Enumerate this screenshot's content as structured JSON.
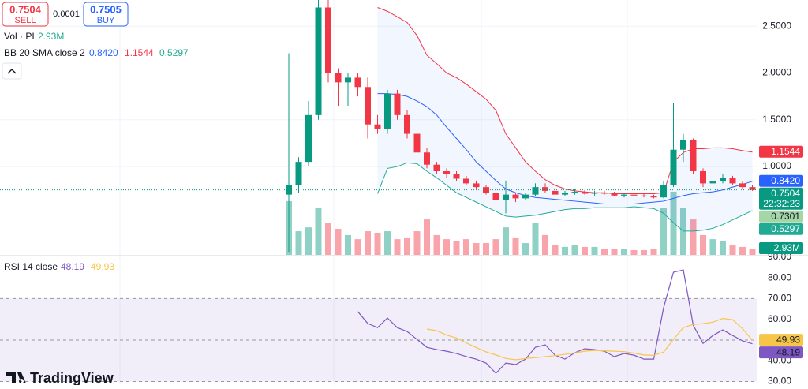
{
  "trade": {
    "sell_price": "0.7504",
    "sell": "SELL",
    "spread": "0.0001",
    "buy_price": "0.7505",
    "buy": "BUY"
  },
  "brand": "TradingView",
  "chart_data": [
    {
      "type": "candlestick",
      "open": [
        0.7,
        0.8,
        1.05,
        1.55,
        2.7,
        2.0,
        1.9,
        1.95,
        1.85,
        1.45,
        1.4,
        1.78,
        1.55,
        1.35,
        1.15,
        1.02,
        0.95,
        0.92,
        0.87,
        0.82,
        0.78,
        0.72,
        0.64,
        0.7,
        0.66,
        0.7,
        0.78,
        0.74,
        0.7,
        0.72,
        0.73,
        0.71,
        0.72,
        0.71,
        0.69,
        0.7,
        0.69,
        0.68,
        0.67,
        0.8,
        1.18,
        1.28,
        0.95,
        0.82,
        0.84,
        0.88,
        0.82,
        0.78
      ],
      "high": [
        2.21,
        1.1,
        1.7,
        2.78,
        2.78,
        2.05,
        2.0,
        2.0,
        1.95,
        1.55,
        1.82,
        1.82,
        1.6,
        1.4,
        1.2,
        1.05,
        0.98,
        0.95,
        0.9,
        0.85,
        0.8,
        0.75,
        0.85,
        0.72,
        0.72,
        0.82,
        0.82,
        0.76,
        0.74,
        0.76,
        0.75,
        0.74,
        0.74,
        0.73,
        0.72,
        0.72,
        0.71,
        0.7,
        0.84,
        1.68,
        1.35,
        1.3,
        0.98,
        0.88,
        0.92,
        0.9,
        0.84,
        0.8
      ],
      "low": [
        0.08,
        0.72,
        1.0,
        1.5,
        1.9,
        1.65,
        1.65,
        1.75,
        1.3,
        1.35,
        1.35,
        1.5,
        1.3,
        1.12,
        0.98,
        0.92,
        0.88,
        0.84,
        0.8,
        0.76,
        0.7,
        0.6,
        0.5,
        0.62,
        0.64,
        0.68,
        0.72,
        0.68,
        0.68,
        0.7,
        0.7,
        0.69,
        0.7,
        0.68,
        0.67,
        0.68,
        0.67,
        0.66,
        0.66,
        0.78,
        1.05,
        0.92,
        0.78,
        0.78,
        0.82,
        0.8,
        0.76,
        0.74
      ],
      "close": [
        0.8,
        1.05,
        1.55,
        2.7,
        2.0,
        1.9,
        1.95,
        1.85,
        1.45,
        1.4,
        1.78,
        1.55,
        1.35,
        1.15,
        1.02,
        0.95,
        0.92,
        0.87,
        0.82,
        0.78,
        0.72,
        0.64,
        0.7,
        0.66,
        0.7,
        0.78,
        0.74,
        0.7,
        0.72,
        0.73,
        0.71,
        0.72,
        0.71,
        0.69,
        0.7,
        0.69,
        0.68,
        0.67,
        0.8,
        1.18,
        1.28,
        0.95,
        0.82,
        0.84,
        0.88,
        0.82,
        0.78,
        0.7504
      ],
      "up_color": "#089981",
      "down_color": "#f23645",
      "ylim": [
        0.056,
        2.78
      ],
      "yticks": [
        {
          "value": 1,
          "label": "1.0000"
        },
        {
          "value": 1.5,
          "label": "1.5000"
        },
        {
          "value": 2,
          "label": "2.0000"
        },
        {
          "value": 2.5,
          "label": "2.5000"
        }
      ],
      "grid": true,
      "price_label": "0.7504",
      "countdown": "22:32:23",
      "reference_label": "0.7301",
      "volume": {
        "name": "Vol · PI",
        "last_label": "2.93M",
        "ylim": [
          0,
          118.6
        ],
        "values": [
          25,
          11,
          12.8,
          22,
          14.7,
          12.1,
          9.2,
          7.3,
          11,
          10.3,
          11,
          7.3,
          8.1,
          11,
          16.5,
          9.2,
          7.3,
          6.6,
          7.3,
          5.5,
          5.5,
          7.3,
          12.8,
          8.1,
          5.5,
          14.7,
          9.2,
          4.4,
          3.7,
          4.4,
          3.7,
          3.7,
          2.9,
          2.9,
          2.9,
          2.2,
          2.2,
          2.9,
          22,
          29.4,
          22,
          16.5,
          9.2,
          7.3,
          6.6,
          4.4,
          3.7,
          2.93
        ]
      },
      "indicator": {
        "name": "BB 20 SMA close 2",
        "fill": "rgba(41,98,255,0.06)",
        "series": [
          {
            "color": "#2962ff",
            "last_label": "0.8420",
            "values": [
              null,
              null,
              null,
              null,
              null,
              null,
              null,
              null,
              null,
              1.78,
              1.78,
              1.77,
              1.75,
              1.7,
              1.64,
              1.55,
              1.42,
              1.3,
              1.18,
              1.05,
              0.95,
              0.85,
              0.76,
              0.72,
              0.69,
              0.67,
              0.66,
              0.65,
              0.64,
              0.63,
              0.62,
              0.61,
              0.6,
              0.6,
              0.6,
              0.6,
              0.61,
              0.62,
              0.63,
              0.66,
              0.69,
              0.71,
              0.72,
              0.73,
              0.75,
              0.78,
              0.81,
              0.842
            ]
          },
          {
            "color": "#f23645",
            "last_label": "1.1544",
            "values": [
              null,
              null,
              null,
              null,
              null,
              null,
              null,
              null,
              null,
              2.7,
              2.66,
              2.6,
              2.54,
              2.4,
              2.19,
              2.1,
              2.0,
              1.95,
              1.88,
              1.8,
              1.72,
              1.6,
              1.35,
              1.2,
              1.05,
              0.95,
              0.86,
              0.8,
              0.76,
              0.74,
              0.73,
              0.72,
              0.72,
              0.71,
              0.71,
              0.71,
              0.71,
              0.71,
              0.72,
              1.05,
              1.15,
              1.19,
              1.19,
              1.2,
              1.2,
              1.19,
              1.17,
              1.1544
            ]
          },
          {
            "color": "#22ab94",
            "last_label": "0.5297",
            "values": [
              null,
              null,
              null,
              null,
              null,
              null,
              null,
              null,
              null,
              0.71,
              0.98,
              1.0,
              1.04,
              1.03,
              0.95,
              0.88,
              0.8,
              0.72,
              0.67,
              0.62,
              0.57,
              0.52,
              0.47,
              0.46,
              0.47,
              0.48,
              0.5,
              0.52,
              0.54,
              0.55,
              0.55,
              0.56,
              0.56,
              0.56,
              0.56,
              0.57,
              0.56,
              0.55,
              0.5,
              0.4,
              0.31,
              0.31,
              0.32,
              0.34,
              0.38,
              0.43,
              0.48,
              0.5297
            ]
          }
        ]
      }
    },
    {
      "type": "line",
      "name": "RSI 14 close",
      "ylim": [
        28.3,
        90.3
      ],
      "yticks": [
        {
          "value": 30,
          "label": "30.00"
        },
        {
          "value": 40,
          "label": "40.00"
        },
        {
          "value": 50,
          "label": "50.00"
        },
        {
          "value": 60,
          "label": "60.00"
        },
        {
          "value": 70,
          "label": "70.00"
        },
        {
          "value": 80,
          "label": "80.00"
        },
        {
          "value": 90,
          "label": "90.00"
        }
      ],
      "levels": [
        70,
        50,
        30
      ],
      "band_color": "rgba(126,87,194,0.1)",
      "series": [
        {
          "color": "#7e57c2",
          "last_label": "48.19",
          "values": [
            null,
            null,
            null,
            null,
            null,
            null,
            null,
            63.7,
            58.0,
            56.0,
            60.6,
            56.0,
            54.1,
            50.3,
            46.5,
            45.4,
            44.6,
            43.5,
            42.0,
            40.8,
            38.9,
            34.0,
            38.9,
            38.2,
            40.8,
            46.5,
            47.7,
            42.7,
            40.8,
            43.9,
            45.8,
            45.4,
            44.6,
            42.0,
            43.5,
            42.7,
            40.8,
            40.8,
            65.6,
            82.7,
            83.8,
            57.2,
            48.4,
            52.2,
            54.9,
            52.2,
            49.6,
            48.19
          ]
        },
        {
          "color": "#f7c548",
          "last_label": "49.93",
          "values": [
            null,
            null,
            null,
            null,
            null,
            null,
            null,
            null,
            null,
            null,
            null,
            null,
            null,
            null,
            55.3,
            54.5,
            52.4,
            51.0,
            48.6,
            46.4,
            44.3,
            42.8,
            41.1,
            40.5,
            41.1,
            41.5,
            42.0,
            42.5,
            43.1,
            43.8,
            44.6,
            45.0,
            44.8,
            44.6,
            44.4,
            43.7,
            42.8,
            42.6,
            44.2,
            50.3,
            56.0,
            57.5,
            57.9,
            58.6,
            60.4,
            59.8,
            55.5,
            49.93
          ]
        }
      ]
    }
  ]
}
